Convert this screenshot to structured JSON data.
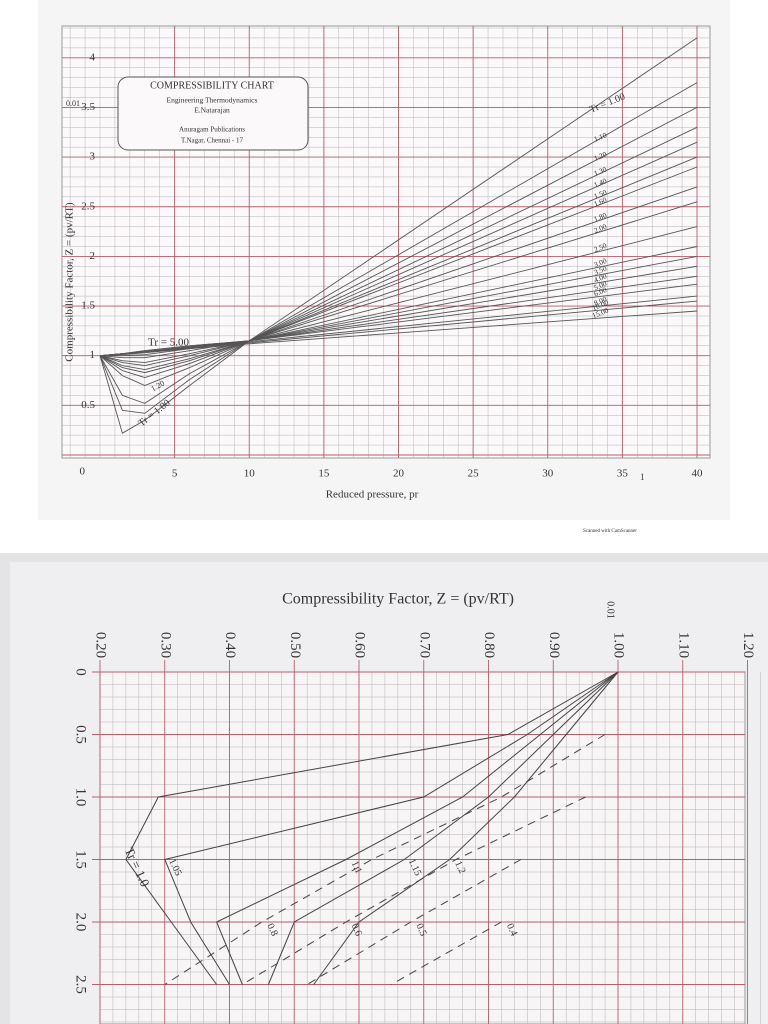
{
  "chart_data": [
    {
      "type": "line",
      "title": "COMPRESSIBILITY CHART",
      "box_lines": [
        "Engineering Thermodynamics",
        "E.Natarajan",
        "Anuragam Publications",
        "T.Nagar, Chennai - 17"
      ],
      "xlabel": "Reduced pressure, pr",
      "ylabel": "Compressibility Factor, Z = (pv/RT)",
      "x": [
        0,
        1.5,
        3,
        6,
        10,
        40
      ],
      "xlim": [
        0,
        40
      ],
      "xticks": [
        5,
        10,
        15,
        20,
        25,
        30,
        35,
        40
      ],
      "ylim": [
        0,
        4.3
      ],
      "yticks": [
        0,
        0.5,
        1,
        1.5,
        2,
        2.5,
        3,
        3.5,
        4
      ],
      "grid": true,
      "color": "#555555",
      "annotations": [
        "Tr = 5.00",
        "1.20",
        "Tr = 1.00",
        "0.01",
        "1"
      ],
      "series": [
        {
          "name": "Tr = 1.00",
          "values": [
            1,
            0.22,
            0.35,
            0.7,
            1.15,
            4.2
          ]
        },
        {
          "name": "1.10",
          "values": [
            1,
            0.45,
            0.42,
            0.76,
            1.15,
            3.75
          ]
        },
        {
          "name": "1.20",
          "values": [
            1,
            0.6,
            0.52,
            0.82,
            1.15,
            3.5
          ]
        },
        {
          "name": "1.30",
          "values": [
            1,
            0.8,
            0.7,
            0.88,
            1.15,
            3.3
          ]
        },
        {
          "name": "1.40",
          "values": [
            1,
            0.85,
            0.78,
            0.92,
            1.15,
            3.15
          ]
        },
        {
          "name": "1.50",
          "values": [
            1,
            0.88,
            0.83,
            0.95,
            1.15,
            3.0
          ]
        },
        {
          "name": "1.60",
          "values": [
            1,
            0.9,
            0.86,
            0.97,
            1.15,
            2.9
          ]
        },
        {
          "name": "1.80",
          "values": [
            1,
            0.93,
            0.9,
            1.0,
            1.15,
            2.7
          ]
        },
        {
          "name": "2.00",
          "values": [
            1,
            0.95,
            0.93,
            1.02,
            1.15,
            2.55
          ]
        },
        {
          "name": "2.50",
          "values": [
            1,
            0.98,
            0.98,
            1.05,
            1.15,
            2.3
          ]
        },
        {
          "name": "3.00",
          "values": [
            1,
            1.0,
            1.01,
            1.07,
            1.15,
            2.1
          ]
        },
        {
          "name": "3.50",
          "values": [
            1,
            1.01,
            1.03,
            1.08,
            1.15,
            2.0
          ]
        },
        {
          "name": "4.00",
          "values": [
            1,
            1.02,
            1.04,
            1.09,
            1.15,
            1.9
          ]
        },
        {
          "name": "5.00",
          "values": [
            1,
            1.02,
            1.05,
            1.1,
            1.15,
            1.8
          ]
        },
        {
          "name": "6.00",
          "values": [
            1,
            1.02,
            1.05,
            1.1,
            1.15,
            1.72
          ]
        },
        {
          "name": "8.00",
          "values": [
            1,
            1.02,
            1.04,
            1.09,
            1.14,
            1.6
          ]
        },
        {
          "name": "10.00",
          "values": [
            1,
            1.02,
            1.04,
            1.08,
            1.13,
            1.55
          ]
        },
        {
          "name": "15.00",
          "values": [
            1,
            1.02,
            1.03,
            1.07,
            1.12,
            1.45
          ]
        }
      ]
    },
    {
      "type": "line",
      "title": "Compressibility Factor, Z = (pv/RT)",
      "x": [
        0,
        0.5,
        1.0,
        1.5,
        2.0,
        2.5
      ],
      "xlim": [
        0,
        2.9
      ],
      "xticks": [
        0,
        0.5,
        {
          "value": 1,
          "label": "1.0"
        },
        1.5,
        {
          "value": 2,
          "label": "2.0"
        },
        2.5
      ],
      "ylim": [
        0.2,
        1.2
      ],
      "yticks": [
        {
          "value": 0.2,
          "label": "0.20"
        },
        {
          "value": 0.3,
          "label": "0.30"
        },
        {
          "value": 0.4,
          "label": "0.40"
        },
        {
          "value": 0.5,
          "label": "0.50"
        },
        {
          "value": 0.6,
          "label": "0.60"
        },
        {
          "value": 0.7,
          "label": "0.70"
        },
        {
          "value": 0.8,
          "label": "0.80"
        },
        {
          "value": 0.9,
          "label": "0.90"
        },
        {
          "value": 1,
          "label": "1.00"
        },
        {
          "value": 1.1,
          "label": "1.10"
        },
        {
          "value": 1.2,
          "label": "1.20"
        }
      ],
      "grid": true,
      "color": "#444444",
      "annotations": [
        "0.01"
      ],
      "series": [
        {
          "name": "Tr = 1.0",
          "values": [
            1,
            0.83,
            0.29,
            0.24,
            0.31,
            0.38
          ]
        },
        {
          "name": "1.05",
          "values": [
            1,
            0.86,
            0.7,
            0.3,
            0.34,
            0.4
          ]
        },
        {
          "name": "1.1",
          "values": [
            1,
            0.88,
            0.76,
            0.58,
            0.38,
            0.42
          ]
        },
        {
          "name": "1.15",
          "values": [
            1,
            0.9,
            0.8,
            0.67,
            0.5,
            0.46
          ]
        },
        {
          "name": "1.2",
          "values": [
            1,
            0.92,
            0.84,
            0.74,
            0.6,
            0.53
          ]
        },
        {
          "name": "0.8",
          "dash": true,
          "values": [
            null,
            0.98,
            0.82,
            0.62,
            0.45,
            0.3
          ]
        },
        {
          "name": "0.6",
          "dash": true,
          "values": [
            null,
            null,
            0.95,
            0.75,
            0.58,
            0.42
          ]
        },
        {
          "name": "0.5",
          "dash": true,
          "values": [
            null,
            null,
            null,
            0.85,
            0.68,
            0.52
          ]
        },
        {
          "name": "0.4",
          "dash": true,
          "values": [
            null,
            null,
            null,
            null,
            0.82,
            0.65
          ]
        }
      ]
    }
  ]
}
